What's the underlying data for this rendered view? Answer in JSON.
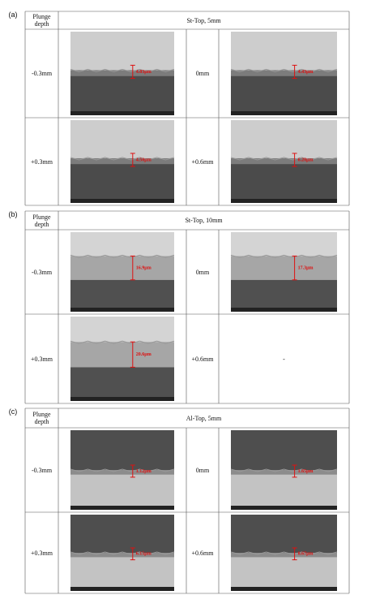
{
  "panels": [
    {
      "label": "(a)",
      "header": "Plunge depth",
      "title": "St-Top, 5mm",
      "rows": [
        [
          {
            "depth": "-0.3mm",
            "measure": "4.03μm"
          },
          {
            "depth": "0mm",
            "measure": "4.43μm"
          }
        ],
        [
          {
            "depth": "+0.3mm",
            "measure": "4.50μm"
          },
          {
            "depth": "+0.6mm",
            "measure": "6.28μm"
          }
        ]
      ]
    },
    {
      "label": "(b)",
      "header": "Plunge depth",
      "title": "St-Top, 10mm",
      "rows": [
        [
          {
            "depth": "-0.3mm",
            "measure": "16.9μm"
          },
          {
            "depth": "0mm",
            "measure": "17.3μm"
          }
        ],
        [
          {
            "depth": "+0.3mm",
            "measure": "20.6μm"
          },
          {
            "depth": "+0.6mm",
            "empty": "-"
          }
        ]
      ]
    },
    {
      "label": "(c)",
      "header": "Plunge depth",
      "title": "Al-Top, 5mm",
      "rows": [
        [
          {
            "depth": "-0.3mm",
            "measure": "1.12μm"
          },
          {
            "depth": "0mm",
            "measure": "1.65μm"
          }
        ],
        [
          {
            "depth": "+0.3mm",
            "measure": "6.15μm"
          },
          {
            "depth": "+0.6mm",
            "measure": "8.67μm"
          }
        ]
      ]
    }
  ]
}
